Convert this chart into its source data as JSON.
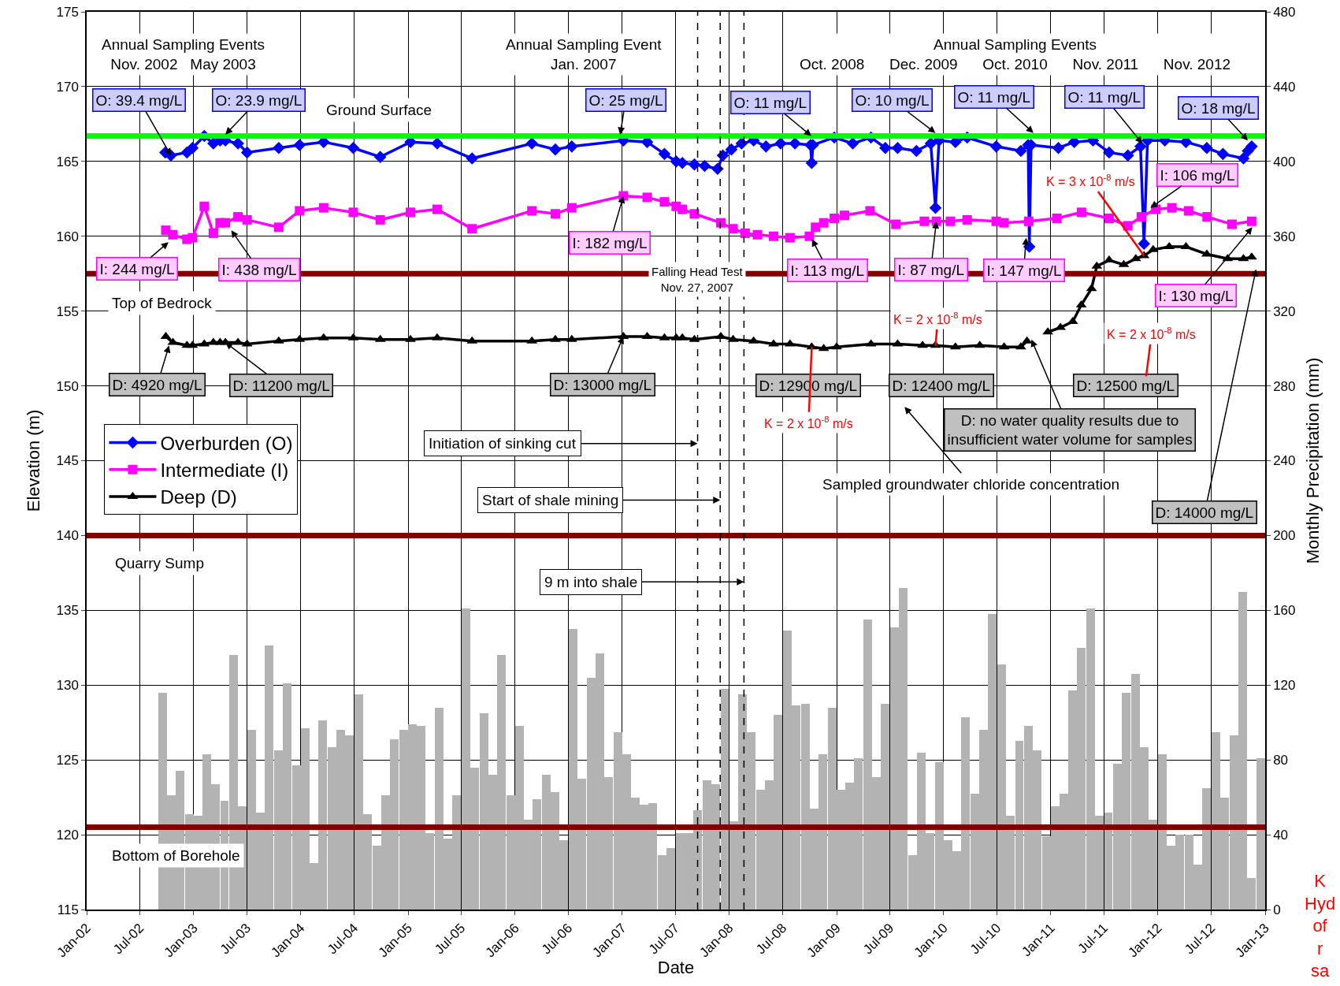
{
  "chart_data": {
    "type": "line",
    "xlabel": "Date",
    "ylabel": "Elevation (m)",
    "y2label": "Monthly Precipitation (mm)",
    "xlim": [
      "2002-01",
      "2013-01"
    ],
    "xticks": [
      {
        "value": "2002-01",
        "label": "Jan-02"
      },
      {
        "value": "2002-07",
        "label": "Jul-02"
      },
      {
        "value": "2003-01",
        "label": "Jan-03"
      },
      {
        "value": "2003-07",
        "label": "Jul-03"
      },
      {
        "value": "2004-01",
        "label": "Jan-04"
      },
      {
        "value": "2004-07",
        "label": "Jul-04"
      },
      {
        "value": "2005-01",
        "label": "Jan-05"
      },
      {
        "value": "2005-07",
        "label": "Jul-05"
      },
      {
        "value": "2006-01",
        "label": "Jan-06"
      },
      {
        "value": "2006-07",
        "label": "Jul-06"
      },
      {
        "value": "2007-01",
        "label": "Jan-07"
      },
      {
        "value": "2007-07",
        "label": "Jul-07"
      },
      {
        "value": "2008-01",
        "label": "Jan-08"
      },
      {
        "value": "2008-07",
        "label": "Jul-08"
      },
      {
        "value": "2009-01",
        "label": "Jan-09"
      },
      {
        "value": "2009-07",
        "label": "Jul-09"
      },
      {
        "value": "2010-01",
        "label": "Jan-10"
      },
      {
        "value": "2010-07",
        "label": "Jul-10"
      },
      {
        "value": "2011-01",
        "label": "Jan-11"
      },
      {
        "value": "2011-07",
        "label": "Jul-11"
      },
      {
        "value": "2012-01",
        "label": "Jan-12"
      },
      {
        "value": "2012-07",
        "label": "Jul-12"
      },
      {
        "value": "2013-01",
        "label": "Jan-13"
      }
    ],
    "ylim": [
      115,
      175
    ],
    "yticks": [
      115,
      120,
      125,
      130,
      135,
      140,
      145,
      150,
      155,
      160,
      165,
      170,
      175
    ],
    "y2lim": [
      0,
      480
    ],
    "y2ticks": [
      0,
      40,
      80,
      120,
      160,
      200,
      240,
      280,
      320,
      360,
      400,
      440,
      480
    ],
    "grid": true,
    "legend": "left",
    "series": [
      {
        "type": "bar",
        "axis": "y2",
        "color": "#b3b3b3",
        "x": [
          "2002-09",
          "2002-10",
          "2002-11",
          "2002-12",
          "2003-01",
          "2003-02",
          "2003-03",
          "2003-04",
          "2003-05",
          "2003-06",
          "2003-07",
          "2003-08",
          "2003-09",
          "2003-10",
          "2003-11",
          "2003-12",
          "2004-01",
          "2004-02",
          "2004-03",
          "2004-04",
          "2004-05",
          "2004-06",
          "2004-07",
          "2004-08",
          "2004-09",
          "2004-10",
          "2004-11",
          "2004-12",
          "2005-01",
          "2005-02",
          "2005-03",
          "2005-04",
          "2005-05",
          "2005-06",
          "2005-07",
          "2005-08",
          "2005-09",
          "2005-10",
          "2005-11",
          "2005-12",
          "2006-01",
          "2006-02",
          "2006-03",
          "2006-04",
          "2006-05",
          "2006-06",
          "2006-07",
          "2006-08",
          "2006-09",
          "2006-10",
          "2006-11",
          "2006-12",
          "2007-01",
          "2007-02",
          "2007-03",
          "2007-04",
          "2007-05",
          "2007-06",
          "2007-07",
          "2007-08",
          "2007-09",
          "2007-10",
          "2007-11",
          "2007-12",
          "2008-01",
          "2008-02",
          "2008-03",
          "2008-04",
          "2008-05",
          "2008-06",
          "2008-07",
          "2008-08",
          "2008-09",
          "2008-10",
          "2008-11",
          "2008-12",
          "2009-01",
          "2009-02",
          "2009-03",
          "2009-04",
          "2009-05",
          "2009-06",
          "2009-07",
          "2009-08",
          "2009-09",
          "2009-10",
          "2009-11",
          "2009-12",
          "2010-01",
          "2010-02",
          "2010-03",
          "2010-04",
          "2010-05",
          "2010-06",
          "2010-07",
          "2010-08",
          "2010-09",
          "2010-10",
          "2010-11",
          "2010-12",
          "2011-01",
          "2011-02",
          "2011-03",
          "2011-04",
          "2011-05",
          "2011-06",
          "2011-07",
          "2011-08",
          "2011-09",
          "2011-10",
          "2011-11",
          "2011-12",
          "2012-01",
          "2012-02",
          "2012-03",
          "2012-04",
          "2012-05",
          "2012-06",
          "2012-07",
          "2012-08",
          "2012-09",
          "2012-10",
          "2012-11",
          "2012-12"
        ],
        "values": [
          116,
          61,
          74,
          51,
          50,
          83,
          67,
          58,
          136,
          55,
          96,
          52,
          141,
          85,
          121,
          77,
          97,
          25,
          101,
          87,
          96,
          93,
          115,
          51,
          34,
          61,
          91,
          96,
          99,
          98,
          41,
          108,
          38,
          61,
          161,
          76,
          105,
          72,
          136,
          61,
          98,
          48,
          59,
          72,
          63,
          37,
          150,
          70,
          124,
          137,
          71,
          95,
          83,
          60,
          56,
          57,
          29,
          33,
          41,
          41,
          53,
          69,
          67,
          118,
          47,
          115,
          95,
          64,
          69,
          104,
          149,
          109,
          110,
          54,
          83,
          108,
          64,
          68,
          81,
          155,
          71,
          110,
          151,
          172,
          29,
          84,
          41,
          79,
          37,
          31,
          103,
          62,
          96,
          158,
          131,
          50,
          90,
          98,
          85,
          39,
          55,
          62,
          117,
          140,
          161,
          50,
          52,
          78,
          116,
          126,
          87,
          48,
          83,
          34,
          40,
          40,
          24,
          65,
          95,
          60,
          93,
          170,
          17,
          81
        ]
      },
      {
        "name": "Overburden (O)",
        "color": "#0000ff",
        "marker": "diamond",
        "x": [
          "2002-09-26",
          "2002-10-15",
          "2002-12-09",
          "2002-12-28",
          "2003-02-06",
          "2003-03-09",
          "2003-04-01",
          "2003-04-19",
          "2003-06-01",
          "2003-07-02",
          "2003-10-18",
          "2003-12-28",
          "2004-03-19",
          "2004-06-28",
          "2004-09-28",
          "2005-01-09",
          "2005-04-10",
          "2005-08-07",
          "2006-02-27",
          "2006-05-18",
          "2006-07-13",
          "2007-01-05",
          "2007-03-27",
          "2007-05-25",
          "2007-07-04",
          "2007-07-25",
          "2007-09-04",
          "2007-10-09",
          "2007-11-22",
          "2007-12-10",
          "2008-01-08",
          "2008-02-12",
          "2008-03-24",
          "2008-05-05",
          "2008-06-24",
          "2008-08-12",
          "2008-10-04",
          "2008-10-08",
          "2008-10-12",
          "2008-12-24",
          "2009-02-25",
          "2009-04-28",
          "2009-06-16",
          "2009-07-28",
          "2009-09-30",
          "2009-11-18",
          "2009-12-04",
          "2009-12-16",
          "2010-02-10",
          "2010-03-22",
          "2010-06-29",
          "2010-09-21",
          "2010-10-16",
          "2010-10-20",
          "2010-10-26",
          "2011-01-27",
          "2011-03-22",
          "2011-05-25",
          "2011-07-19",
          "2011-09-21",
          "2011-11-03",
          "2011-11-15",
          "2011-11-27",
          "2012-01-25",
          "2012-04-06",
          "2012-06-16",
          "2012-08-10",
          "2012-10-19",
          "2012-11-03",
          "2012-11-16"
        ],
        "values": [
          165.6,
          165.4,
          165.6,
          165.9,
          166.7,
          166.2,
          166.4,
          166.4,
          166.2,
          165.6,
          165.9,
          166.1,
          166.3,
          165.9,
          165.3,
          166.3,
          166.2,
          165.2,
          166.2,
          165.8,
          166.0,
          166.4,
          166.3,
          165.5,
          165.0,
          164.9,
          164.8,
          164.7,
          164.5,
          165.4,
          165.8,
          166.2,
          166.4,
          166.0,
          166.2,
          166.2,
          166.1,
          164.9,
          166.1,
          166.6,
          166.2,
          166.6,
          165.9,
          165.9,
          165.7,
          166.2,
          161.9,
          166.4,
          166.3,
          166.6,
          166.0,
          165.7,
          166.1,
          159.3,
          166.1,
          165.9,
          166.3,
          166.4,
          165.6,
          165.4,
          166.0,
          159.5,
          166.4,
          166.4,
          166.3,
          165.9,
          165.5,
          165.2,
          165.7,
          166.0
        ]
      },
      {
        "name": "Intermediate (I)",
        "color": "#ff00ff",
        "marker": "square",
        "x": [
          "2002-09-28",
          "2002-10-22",
          "2002-12-09",
          "2002-12-28",
          "2003-02-06",
          "2003-03-09",
          "2003-04-01",
          "2003-04-19",
          "2003-06-01",
          "2003-07-02",
          "2003-10-18",
          "2003-12-28",
          "2004-03-19",
          "2004-06-28",
          "2004-09-28",
          "2005-01-09",
          "2005-04-10",
          "2005-08-07",
          "2006-02-27",
          "2006-05-18",
          "2006-07-13",
          "2007-01-05",
          "2007-03-27",
          "2007-05-25",
          "2007-07-04",
          "2007-07-25",
          "2007-09-04",
          "2007-12-03",
          "2008-01-14",
          "2008-02-24",
          "2008-04-06",
          "2008-05-31",
          "2008-07-26",
          "2008-09-30",
          "2008-10-21",
          "2008-11-18",
          "2008-12-24",
          "2009-01-28",
          "2009-04-25",
          "2009-07-22",
          "2009-10-27",
          "2009-12-07",
          "2010-01-24",
          "2010-03-22",
          "2010-06-29",
          "2010-07-26",
          "2010-10-18",
          "2011-01-22",
          "2011-04-16",
          "2011-07-19",
          "2011-09-21",
          "2011-11-06",
          "2011-12-25",
          "2012-02-18",
          "2012-04-15",
          "2012-06-17",
          "2012-09-10",
          "2012-11-16"
        ],
        "values": [
          160.4,
          160.1,
          159.8,
          159.9,
          162.0,
          160.2,
          160.9,
          160.9,
          161.3,
          161.1,
          160.6,
          161.7,
          161.9,
          161.6,
          161.1,
          161.6,
          161.8,
          160.5,
          161.7,
          161.5,
          161.9,
          162.7,
          162.6,
          162.3,
          162.0,
          161.8,
          161.5,
          160.9,
          160.5,
          160.2,
          160.1,
          160.0,
          159.9,
          160.0,
          160.6,
          160.9,
          161.2,
          161.4,
          161.7,
          160.8,
          161.0,
          161.0,
          161.0,
          161.1,
          161.0,
          160.9,
          161.0,
          161.2,
          161.6,
          161.2,
          160.7,
          161.3,
          161.8,
          161.9,
          161.7,
          161.3,
          160.8,
          161.0
        ]
      },
      {
        "name": "Deep (D)",
        "color": "#000000",
        "marker": "triangle",
        "x": [
          "2002-09-28",
          "2002-10-22",
          "2002-12-09",
          "2002-12-28",
          "2003-02-06",
          "2003-03-09",
          "2003-04-01",
          "2003-04-19",
          "2003-06-01",
          "2003-07-02",
          "2003-10-18",
          "2003-12-28",
          "2004-03-19",
          "2004-06-28",
          "2004-09-28",
          "2005-01-09",
          "2005-04-10",
          "2005-08-07",
          "2006-02-27",
          "2006-05-18",
          "2006-07-13",
          "2007-01-05",
          "2007-03-27",
          "2007-05-25",
          "2007-07-04",
          "2007-07-25",
          "2007-09-04",
          "2007-12-03",
          "2008-01-14",
          "2008-03-24",
          "2008-05-31",
          "2008-07-26",
          "2008-10-08",
          "2008-11-18",
          "2009-01-01",
          "2009-04-28",
          "2009-07-28",
          "2009-10-21",
          "2009-12-04",
          "2010-02-10",
          "2010-05-04",
          "2010-07-26",
          "2010-09-21",
          "2010-10-12",
          "2010-11-15",
          "2010-12-22",
          "2011-02-03",
          "2011-03-17",
          "2011-04-15",
          "2011-05-20",
          "2011-06-07",
          "2011-07-19",
          "2011-09-07",
          "2011-10-18",
          "2011-11-15",
          "2011-12-16",
          "2012-02-09",
          "2012-04-06",
          "2012-06-16",
          "2012-08-26",
          "2012-10-19",
          "2012-11-16"
        ],
        "values": [
          153.3,
          152.9,
          152.7,
          152.7,
          152.8,
          152.9,
          152.9,
          152.9,
          152.9,
          152.8,
          153.0,
          153.1,
          153.2,
          153.2,
          153.1,
          153.1,
          153.2,
          153.0,
          153.0,
          153.1,
          153.1,
          153.3,
          153.3,
          153.2,
          153.2,
          153.2,
          153.1,
          153.3,
          153.1,
          153.0,
          152.8,
          152.8,
          152.6,
          152.5,
          152.6,
          152.8,
          152.8,
          152.7,
          152.7,
          152.6,
          152.7,
          152.6,
          152.6,
          153.0,
          null,
          153.6,
          153.9,
          154.3,
          155.4,
          156.5,
          158.0,
          158.4,
          158.1,
          158.5,
          158.7,
          159.1,
          159.3,
          159.3,
          158.8,
          158.5,
          158.5,
          158.6
        ]
      }
    ],
    "ref_lines": [
      {
        "axis": "y",
        "value": 166.7,
        "label": "Ground Surface",
        "color": "#00ff00"
      },
      {
        "axis": "y",
        "value": 157.5,
        "label": "Top of Bedrock",
        "color": "#800000"
      },
      {
        "axis": "y",
        "value": 140,
        "label": "Quarry Sump",
        "color": "#800000"
      },
      {
        "axis": "y",
        "value": 120.5,
        "label": "Bottom of Borehole",
        "color": "#800000"
      },
      {
        "axis": "x",
        "value": "2007-09-15",
        "label": "Initiation of sinking cut",
        "color": "#000000",
        "line_style": "dashed"
      },
      {
        "axis": "x",
        "value": "2007-12-01",
        "label": "Start of shale mining",
        "color": "#000000",
        "line_style": "dashed"
      },
      {
        "axis": "x",
        "value": "2008-02-20",
        "label": "9 m into shale",
        "color": "#000000",
        "line_style": "dashed"
      }
    ],
    "annotations": [
      "Annual Sampling Events\nNov. 2002   May 2003",
      "Annual Sampling Event\nJan. 2007",
      "Annual Sampling Events\nOct. 2008      Dec. 2009      Oct. 2010      Nov. 2011      Nov. 2012",
      {
        "text": "O: 39.4 mg/L",
        "x": "2002-10-15",
        "y": 165.4
      },
      {
        "text": "O: 23.9 mg/L",
        "x": "2003-04-19",
        "y": 166.8
      },
      {
        "text": "O: 25 mg/L",
        "x": "2006-12-25",
        "y": 166.8
      },
      {
        "text": "O: 11 mg/L",
        "x": "2008-10-07",
        "y": 166.7
      },
      {
        "text": "O: 10 mg/L",
        "x": "2009-12-04",
        "y": 166.9
      },
      {
        "text": "O: 11 mg/L",
        "x": "2010-11-03",
        "y": 166.9
      },
      {
        "text": "O: 11 mg/L",
        "x": "2011-11-09",
        "y": 166.2
      },
      {
        "text": "O: 18 mg/L",
        "x": "2012-11-03",
        "y": 166.4
      },
      {
        "text": "I: 244 mg/L",
        "x": "2002-10-07",
        "y": 159.6
      },
      {
        "text": "I: 438 mg/L",
        "x": "2003-05-09",
        "y": 160.4
      },
      {
        "text": "I: 182 mg/L",
        "x": "2007-01-05",
        "y": 162.7
      },
      {
        "text": "I: 113 mg/L",
        "x": "2008-10-09",
        "y": 159.8
      },
      {
        "text": "I: 87 mg/L",
        "x": "2009-12-07",
        "y": 161.0
      },
      {
        "text": "I: 147 mg/L",
        "x": "2010-10-09",
        "y": 159.9
      },
      {
        "text": "I: 106 mg/L",
        "x": "2011-12-07",
        "y": 161.9
      },
      {
        "text": "I: 130 mg/L",
        "x": "2012-11-18",
        "y": 160.6
      },
      {
        "text": "D: 4920 mg/L",
        "x": "2002-10-09",
        "y": 152.7
      },
      {
        "text": "D: 11200 mg/L",
        "x": "2003-04-19",
        "y": 152.9
      },
      {
        "text": "D: 13000 mg/L",
        "x": "2007-01-05",
        "y": 153.3
      },
      "D: 12900 mg/L",
      "D: 12400 mg/L",
      "D: 12500 mg/L",
      {
        "text": "D: 14000 mg/L",
        "x": "2012-12-01",
        "y": 157.8
      },
      {
        "text": "D: no water quality results due to\ninsufficient water volume for samples",
        "x": "2010-10-27",
        "y": 153.1
      },
      "Sampled groundwater chloride concentration",
      "Falling Head Test\nNov. 27, 2007",
      {
        "text": "K = 2 x 10$^{-8}$ m/s",
        "x": "2008-10-08",
        "y": 152.6
      },
      {
        "text": "K = 2 x 10$^{-8}$ m/s",
        "x": "2009-12-04",
        "y": 152.7
      },
      {
        "text": "K = 3 x 10$^{-8}$ m/s",
        "x": "2011-11-15",
        "y": 158.7
      },
      "K = 2 x 10$^{-8}$ m/s",
      "K\nHyd\nof\nr\nsa"
    ]
  }
}
